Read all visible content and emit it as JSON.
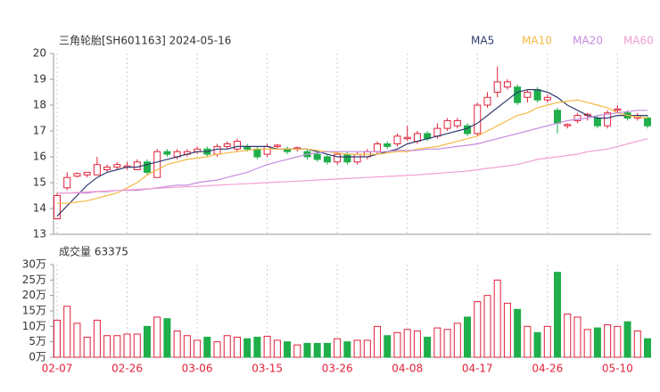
{
  "chart_data": [
    {
      "type": "candlestick",
      "title": "三角轮胎[SH601163] 2024-05-16",
      "up_color": "#e0213a",
      "down_color": "#1fae4a",
      "open": [
        13.6,
        14.8,
        15.25,
        15.3,
        15.3,
        15.5,
        15.6,
        15.6,
        15.5,
        15.8,
        15.2,
        16.2,
        16.0,
        16.1,
        16.2,
        16.3,
        16.1,
        16.4,
        16.3,
        16.4,
        16.3,
        16.1,
        16.4,
        16.3,
        16.3,
        16.2,
        16.1,
        16.0,
        15.8,
        16.1,
        15.8,
        16.0,
        16.2,
        16.5,
        16.5,
        16.7,
        16.6,
        16.9,
        16.8,
        17.1,
        17.2,
        17.2,
        16.9,
        18.0,
        18.5,
        18.7,
        18.7,
        18.3,
        18.6,
        18.2,
        17.8,
        17.2,
        17.4,
        17.6,
        17.5,
        17.2,
        17.8,
        17.7,
        17.5,
        17.5
      ],
      "high": [
        14.6,
        15.4,
        15.4,
        15.4,
        16.0,
        15.7,
        15.8,
        15.8,
        15.9,
        15.9,
        16.3,
        16.3,
        16.3,
        16.3,
        16.4,
        16.4,
        16.5,
        16.6,
        16.7,
        16.5,
        16.4,
        16.5,
        16.5,
        16.4,
        16.4,
        16.3,
        16.2,
        16.1,
        16.2,
        16.2,
        16.2,
        16.3,
        16.6,
        16.6,
        16.9,
        17.2,
        17.0,
        17.0,
        17.3,
        17.5,
        17.5,
        17.3,
        18.1,
        18.5,
        19.5,
        19.0,
        18.8,
        18.6,
        18.7,
        18.4,
        17.9,
        17.3,
        17.7,
        17.7,
        17.6,
        17.8,
        18.0,
        17.8,
        17.7,
        17.6
      ],
      "low": [
        13.6,
        14.7,
        15.2,
        15.2,
        15.3,
        15.4,
        15.5,
        15.5,
        15.5,
        15.3,
        15.2,
        16.0,
        15.9,
        16.0,
        16.1,
        16.0,
        16.0,
        16.3,
        16.2,
        16.2,
        15.9,
        16.0,
        16.3,
        16.1,
        16.2,
        15.9,
        15.8,
        15.7,
        15.7,
        15.7,
        15.7,
        15.9,
        16.1,
        16.3,
        16.4,
        16.6,
        16.5,
        16.6,
        16.7,
        17.0,
        17.1,
        16.8,
        16.8,
        17.9,
        18.3,
        18.6,
        18.0,
        18.1,
        18.1,
        18.1,
        16.9,
        17.1,
        17.3,
        17.4,
        17.1,
        17.1,
        17.7,
        17.4,
        17.4,
        17.1
      ],
      "close": [
        14.5,
        15.2,
        15.35,
        15.4,
        15.7,
        15.6,
        15.7,
        15.65,
        15.8,
        15.4,
        16.2,
        16.1,
        16.2,
        16.2,
        16.3,
        16.1,
        16.4,
        16.5,
        16.6,
        16.3,
        16.0,
        16.4,
        16.45,
        16.2,
        16.35,
        16.0,
        15.9,
        15.8,
        16.1,
        15.8,
        16.1,
        16.2,
        16.5,
        16.4,
        16.8,
        16.75,
        16.9,
        16.7,
        17.1,
        17.4,
        17.4,
        16.9,
        18.0,
        18.3,
        18.9,
        18.9,
        18.1,
        18.5,
        18.2,
        18.3,
        17.3,
        17.25,
        17.6,
        17.65,
        17.2,
        17.7,
        17.85,
        17.5,
        17.6,
        17.2
      ],
      "ylim": [
        13,
        20
      ],
      "yticks": [
        13,
        14,
        15,
        16,
        17,
        18,
        19,
        20
      ],
      "series": [
        {
          "name": "MA5",
          "color": "#2f3a6e",
          "values": [
            13.7,
            14.1,
            14.5,
            14.9,
            15.2,
            15.4,
            15.5,
            15.6,
            15.6,
            15.7,
            15.8,
            15.9,
            16.0,
            16.1,
            16.2,
            16.2,
            16.3,
            16.3,
            16.4,
            16.4,
            16.4,
            16.4,
            16.3,
            16.3,
            16.3,
            16.3,
            16.2,
            16.1,
            16.0,
            16.0,
            16.0,
            16.0,
            16.1,
            16.2,
            16.3,
            16.5,
            16.6,
            16.7,
            16.8,
            16.9,
            17.0,
            17.1,
            17.3,
            17.6,
            17.9,
            18.2,
            18.5,
            18.6,
            18.6,
            18.5,
            18.3,
            18.0,
            17.8,
            17.6,
            17.5,
            17.5,
            17.6,
            17.6,
            17.6,
            17.6
          ]
        },
        {
          "name": "MA10",
          "color": "#f4b942",
          "values": [
            14.2,
            14.2,
            14.25,
            14.3,
            14.4,
            14.5,
            14.6,
            14.8,
            15.0,
            15.3,
            15.5,
            15.7,
            15.8,
            15.9,
            15.95,
            16.0,
            16.1,
            16.15,
            16.2,
            16.25,
            16.3,
            16.3,
            16.3,
            16.3,
            16.3,
            16.3,
            16.25,
            16.2,
            16.15,
            16.1,
            16.1,
            16.1,
            16.1,
            16.15,
            16.2,
            16.2,
            16.3,
            16.35,
            16.4,
            16.5,
            16.6,
            16.7,
            16.8,
            17.0,
            17.2,
            17.4,
            17.6,
            17.7,
            17.9,
            18.0,
            18.1,
            18.15,
            18.2,
            18.1,
            18.0,
            17.9,
            17.7,
            17.6,
            17.55,
            17.5
          ]
        },
        {
          "name": "MA20",
          "color": "#c58be0",
          "values": [
            14.6,
            14.6,
            14.6,
            14.6,
            14.65,
            14.65,
            14.7,
            14.7,
            14.7,
            14.75,
            14.8,
            14.85,
            14.9,
            14.9,
            15.0,
            15.05,
            15.1,
            15.2,
            15.3,
            15.4,
            15.55,
            15.7,
            15.8,
            15.9,
            16.0,
            16.1,
            16.15,
            16.2,
            16.2,
            16.2,
            16.2,
            16.2,
            16.2,
            16.2,
            16.25,
            16.25,
            16.25,
            16.3,
            16.3,
            16.35,
            16.4,
            16.45,
            16.5,
            16.6,
            16.7,
            16.8,
            16.9,
            17.0,
            17.1,
            17.2,
            17.3,
            17.4,
            17.45,
            17.5,
            17.6,
            17.65,
            17.7,
            17.75,
            17.8,
            17.8
          ]
        },
        {
          "name": "MA60",
          "color": "#f0a0d0",
          "values": [
            14.6,
            14.6,
            14.62,
            14.64,
            14.66,
            14.68,
            14.7,
            14.72,
            14.74,
            14.76,
            14.78,
            14.8,
            14.82,
            14.84,
            14.86,
            14.88,
            14.9,
            14.92,
            14.94,
            14.96,
            14.98,
            15.0,
            15.02,
            15.04,
            15.06,
            15.08,
            15.1,
            15.12,
            15.14,
            15.16,
            15.18,
            15.2,
            15.22,
            15.24,
            15.26,
            15.28,
            15.3,
            15.33,
            15.36,
            15.39,
            15.42,
            15.45,
            15.5,
            15.55,
            15.6,
            15.65,
            15.7,
            15.8,
            15.9,
            15.95,
            16.0,
            16.05,
            16.1,
            16.2,
            16.25,
            16.3,
            16.4,
            16.5,
            16.6,
            16.7
          ]
        }
      ]
    },
    {
      "type": "bar",
      "title": "成交量 63375",
      "categories": [
        "02-07",
        null,
        null,
        null,
        null,
        null,
        null,
        "02-26",
        null,
        null,
        null,
        null,
        null,
        null,
        "03-06",
        null,
        null,
        null,
        null,
        null,
        null,
        "03-15",
        null,
        null,
        null,
        null,
        null,
        null,
        "03-26",
        null,
        null,
        null,
        null,
        null,
        null,
        "04-08",
        null,
        null,
        null,
        null,
        null,
        null,
        "04-17",
        null,
        null,
        null,
        null,
        null,
        null,
        "04-26",
        null,
        null,
        null,
        null,
        null,
        null,
        "05-10",
        null,
        null,
        null
      ],
      "values": [
        12,
        16.5,
        11,
        6.5,
        12,
        7,
        7,
        7.5,
        7.5,
        10,
        13,
        12.5,
        8.5,
        7,
        5.5,
        6.5,
        5,
        7,
        6.5,
        6,
        6.5,
        6.8,
        5.5,
        5,
        4,
        4.5,
        4.5,
        4.5,
        6,
        5,
        5.5,
        5.5,
        10,
        7,
        8,
        9,
        8.5,
        6.5,
        9.5,
        9,
        11,
        13,
        18,
        20,
        25,
        17.5,
        15.5,
        10,
        8,
        10,
        27.5,
        14,
        13,
        9,
        9.5,
        10.5,
        10,
        11.5,
        8.5,
        6
      ],
      "ylim": [
        0,
        30
      ],
      "yticks": [
        {
          "value": 0,
          "label": "0万"
        },
        {
          "value": 5,
          "label": "5万"
        },
        {
          "value": 10,
          "label": "10万"
        },
        {
          "value": 15,
          "label": "15万"
        },
        {
          "value": 20,
          "label": "20万"
        },
        {
          "value": 25,
          "label": "25万"
        },
        {
          "value": 30,
          "label": "30万"
        }
      ]
    }
  ]
}
